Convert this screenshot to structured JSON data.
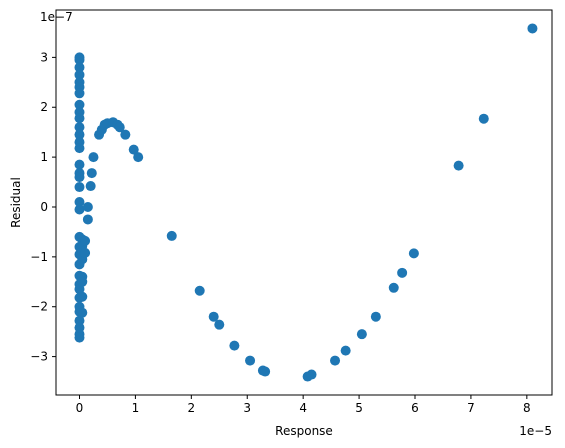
{
  "chart_data": {
    "type": "scatter",
    "title": "",
    "xlabel": "Response",
    "ylabel": "Residual",
    "x_offset_label": "1e−5",
    "y_offset_label": "1e−7",
    "xlim": [
      -0.42,
      8.45
    ],
    "ylim": [
      -3.77,
      3.95
    ],
    "x_ticks": [
      0,
      1,
      2,
      3,
      4,
      5,
      6,
      7,
      8
    ],
    "x_tick_labels": [
      "0",
      "1",
      "2",
      "3",
      "4",
      "5",
      "6",
      "7",
      "8"
    ],
    "y_ticks": [
      -3,
      -2,
      -1,
      0,
      1,
      2,
      3
    ],
    "y_tick_labels": [
      "−3",
      "−2",
      "−1",
      "0",
      "1",
      "2",
      "3"
    ],
    "grid": false,
    "marker_color": "#1f77b4",
    "points": [
      {
        "x": 0.0,
        "y": 3.0
      },
      {
        "x": 0.0,
        "y": 2.95
      },
      {
        "x": 0.0,
        "y": 2.8
      },
      {
        "x": 0.0,
        "y": 2.65
      },
      {
        "x": 0.0,
        "y": 2.5
      },
      {
        "x": 0.0,
        "y": 2.4
      },
      {
        "x": 0.0,
        "y": 2.28
      },
      {
        "x": 0.0,
        "y": 2.05
      },
      {
        "x": 0.0,
        "y": 1.9
      },
      {
        "x": 0.0,
        "y": 1.78
      },
      {
        "x": 0.0,
        "y": 1.6
      },
      {
        "x": 0.0,
        "y": 1.45
      },
      {
        "x": 0.0,
        "y": 1.3
      },
      {
        "x": 0.0,
        "y": 1.18
      },
      {
        "x": 0.0,
        "y": 0.85
      },
      {
        "x": 0.0,
        "y": 0.68
      },
      {
        "x": 0.0,
        "y": 0.6
      },
      {
        "x": 0.0,
        "y": 0.4
      },
      {
        "x": 0.0,
        "y": 0.1
      },
      {
        "x": 0.0,
        "y": -0.05
      },
      {
        "x": 0.0,
        "y": -0.6
      },
      {
        "x": 0.0,
        "y": -0.8
      },
      {
        "x": 0.0,
        "y": -0.95
      },
      {
        "x": 0.0,
        "y": -1.15
      },
      {
        "x": 0.0,
        "y": -1.38
      },
      {
        "x": 0.0,
        "y": -1.55
      },
      {
        "x": 0.0,
        "y": -1.65
      },
      {
        "x": 0.0,
        "y": -1.82
      },
      {
        "x": 0.0,
        "y": -2.0
      },
      {
        "x": 0.0,
        "y": -2.1
      },
      {
        "x": 0.0,
        "y": -2.28
      },
      {
        "x": 0.0,
        "y": -2.42
      },
      {
        "x": 0.0,
        "y": -2.55
      },
      {
        "x": 0.0,
        "y": -2.62
      },
      {
        "x": 0.05,
        "y": -0.65
      },
      {
        "x": 0.05,
        "y": -0.78
      },
      {
        "x": 0.05,
        "y": -0.9
      },
      {
        "x": 0.05,
        "y": -1.05
      },
      {
        "x": 0.05,
        "y": -1.4
      },
      {
        "x": 0.05,
        "y": -1.5
      },
      {
        "x": 0.05,
        "y": -1.8
      },
      {
        "x": 0.05,
        "y": -2.12
      },
      {
        "x": 0.1,
        "y": -0.68
      },
      {
        "x": 0.1,
        "y": -0.92
      },
      {
        "x": 0.15,
        "y": -0.25
      },
      {
        "x": 0.15,
        "y": 0.0
      },
      {
        "x": 0.2,
        "y": 0.42
      },
      {
        "x": 0.22,
        "y": 0.68
      },
      {
        "x": 0.25,
        "y": 1.0
      },
      {
        "x": 0.35,
        "y": 1.45
      },
      {
        "x": 0.4,
        "y": 1.55
      },
      {
        "x": 0.45,
        "y": 1.65
      },
      {
        "x": 0.5,
        "y": 1.68
      },
      {
        "x": 0.6,
        "y": 1.7
      },
      {
        "x": 0.68,
        "y": 1.65
      },
      {
        "x": 0.72,
        "y": 1.6
      },
      {
        "x": 0.82,
        "y": 1.45
      },
      {
        "x": 0.97,
        "y": 1.15
      },
      {
        "x": 1.05,
        "y": 1.0
      },
      {
        "x": 1.65,
        "y": -0.58
      },
      {
        "x": 2.15,
        "y": -1.68
      },
      {
        "x": 2.4,
        "y": -2.2
      },
      {
        "x": 2.5,
        "y": -2.36
      },
      {
        "x": 2.77,
        "y": -2.78
      },
      {
        "x": 3.05,
        "y": -3.08
      },
      {
        "x": 3.28,
        "y": -3.28
      },
      {
        "x": 3.32,
        "y": -3.3
      },
      {
        "x": 4.08,
        "y": -3.4
      },
      {
        "x": 4.15,
        "y": -3.36
      },
      {
        "x": 4.57,
        "y": -3.08
      },
      {
        "x": 4.76,
        "y": -2.88
      },
      {
        "x": 5.05,
        "y": -2.55
      },
      {
        "x": 5.3,
        "y": -2.2
      },
      {
        "x": 5.62,
        "y": -1.62
      },
      {
        "x": 5.77,
        "y": -1.32
      },
      {
        "x": 5.98,
        "y": -0.93
      },
      {
        "x": 6.78,
        "y": 0.83
      },
      {
        "x": 7.23,
        "y": 1.77
      },
      {
        "x": 8.1,
        "y": 3.58
      }
    ]
  }
}
